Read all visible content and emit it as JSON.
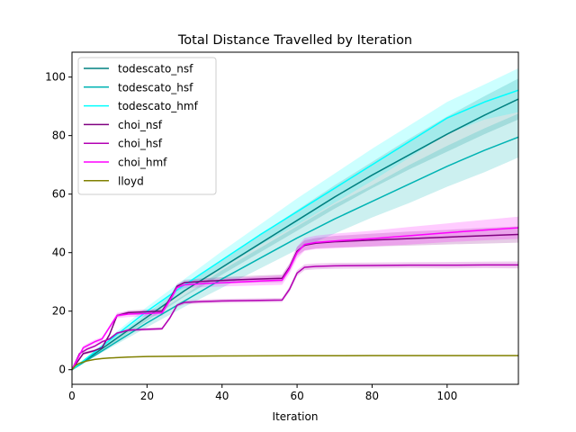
{
  "chart_data": {
    "type": "line",
    "title": "Total Distance Travelled by Iteration",
    "xlabel": "Iteration",
    "ylabel": "",
    "xlim": [
      0,
      119
    ],
    "ylim": [
      -5,
      108.5
    ],
    "xticks": [
      0,
      20,
      40,
      60,
      80,
      100
    ],
    "yticks": [
      0,
      20,
      40,
      60,
      80,
      100
    ],
    "grid": false,
    "legend_position": "top-left",
    "series": [
      {
        "name": "todescato_nsf",
        "color": "#008080",
        "x": [
          0,
          10,
          20,
          30,
          40,
          50,
          60,
          70,
          80,
          90,
          100,
          110,
          119
        ],
        "y": [
          0,
          9,
          18,
          27,
          35,
          43,
          51,
          59,
          66.5,
          73.5,
          80.5,
          87,
          92.5
        ],
        "band": {
          "upper": [
            0,
            9.7,
            19.3,
            29,
            37.5,
            46,
            54.5,
            63,
            71,
            79,
            86.5,
            93.5,
            99.5
          ],
          "lower": [
            0,
            8.3,
            16.7,
            25,
            32.5,
            40,
            47.5,
            55,
            62,
            68.5,
            74.5,
            80.5,
            85.5
          ]
        }
      },
      {
        "name": "todescato_hsf",
        "color": "#00b3b3",
        "x": [
          0,
          10,
          20,
          30,
          40,
          50,
          60,
          70,
          80,
          90,
          100,
          110,
          119
        ],
        "y": [
          0,
          8,
          16,
          23.5,
          31,
          38,
          45,
          51.5,
          57.5,
          63.5,
          69.5,
          75,
          79.5
        ],
        "band": {
          "upper": [
            0,
            8.7,
            17.5,
            25.5,
            34,
            41.5,
            49,
            56.5,
            63,
            70,
            76.5,
            82.5,
            87.5
          ],
          "lower": [
            0,
            7.3,
            14.5,
            21.5,
            28,
            34.5,
            41,
            46.5,
            52,
            57,
            62.5,
            67.5,
            72.5
          ]
        }
      },
      {
        "name": "todescato_hmf",
        "color": "#00ffff",
        "x": [
          0,
          10,
          20,
          30,
          40,
          50,
          60,
          70,
          80,
          90,
          100,
          110,
          119
        ],
        "y": [
          0,
          10,
          20,
          29,
          37.5,
          46,
          54,
          62,
          70,
          78,
          86,
          91.5,
          95.5
        ],
        "band": {
          "upper": [
            0,
            11,
            21.5,
            31,
            40.5,
            49.5,
            58.5,
            67,
            75.5,
            83.5,
            91.5,
            97.5,
            103
          ],
          "lower": [
            0,
            9,
            18.5,
            27,
            34.5,
            42.5,
            49.5,
            57,
            64.5,
            72.5,
            80.5,
            85.5,
            88
          ]
        }
      },
      {
        "name": "choi_nsf",
        "color": "#800080",
        "x": [
          0,
          3,
          6,
          8,
          10,
          12,
          15,
          20,
          24,
          26,
          28,
          30,
          35,
          40,
          50,
          56,
          58,
          60,
          62,
          65,
          70,
          80,
          90,
          100,
          110,
          119
        ],
        "y": [
          0,
          5.5,
          6.5,
          7.5,
          12,
          18.5,
          19.5,
          19.8,
          20,
          24,
          28.5,
          29.8,
          30.2,
          30.5,
          31,
          31.2,
          35,
          40.5,
          42.5,
          43.2,
          43.7,
          44.3,
          44.8,
          45.3,
          45.8,
          46.2
        ],
        "band": {
          "upper": [
            0,
            6,
            7,
            8,
            12.5,
            19,
            20.2,
            20.6,
            20.8,
            24.8,
            29.3,
            30.7,
            31.2,
            31.6,
            32.2,
            32.5,
            36.3,
            42,
            44.2,
            45,
            45.7,
            46.5,
            47.2,
            47.8,
            48.5,
            49
          ],
          "lower": [
            0,
            5,
            6,
            7,
            11.5,
            18,
            18.8,
            19,
            19.2,
            23.2,
            27.7,
            28.9,
            29.2,
            29.4,
            29.8,
            29.9,
            33.7,
            39,
            40.8,
            41.4,
            41.7,
            42.1,
            42.4,
            42.8,
            43.1,
            43.4
          ]
        }
      },
      {
        "name": "choi_hsf",
        "color": "#b300b3",
        "x": [
          0,
          2,
          4,
          6,
          8,
          10,
          12,
          15,
          20,
          24,
          26,
          28,
          30,
          35,
          40,
          50,
          56,
          58,
          60,
          62,
          65,
          70,
          80,
          90,
          100,
          110,
          119
        ],
        "y": [
          0,
          5.5,
          7,
          8,
          9.5,
          10.5,
          12.5,
          13.5,
          13.8,
          14,
          17.5,
          22,
          23,
          23.3,
          23.5,
          23.7,
          23.8,
          27.5,
          33,
          35,
          35.3,
          35.5,
          35.6,
          35.7,
          35.7,
          35.8,
          35.8
        ],
        "band": {
          "upper": [
            0,
            5.9,
            7.4,
            8.4,
            9.9,
            10.9,
            12.9,
            14,
            14.3,
            14.5,
            18,
            22.6,
            23.7,
            24,
            24.2,
            24.4,
            24.5,
            28.4,
            34,
            36,
            36.3,
            36.5,
            36.6,
            36.7,
            36.8,
            36.9,
            37
          ],
          "lower": [
            0,
            5.1,
            6.6,
            7.6,
            9.1,
            10.1,
            12.1,
            13,
            13.3,
            13.5,
            17,
            21.4,
            22.3,
            22.6,
            22.8,
            23,
            23.1,
            26.6,
            32,
            34,
            34.3,
            34.5,
            34.6,
            34.7,
            34.6,
            34.7,
            34.6
          ]
        }
      },
      {
        "name": "choi_hmf",
        "color": "#ff00ff",
        "x": [
          0,
          3,
          6,
          8,
          10,
          12,
          15,
          20,
          24,
          26,
          28,
          30,
          35,
          40,
          50,
          56,
          58,
          60,
          62,
          65,
          70,
          80,
          90,
          100,
          110,
          119
        ],
        "y": [
          0,
          7.5,
          9.5,
          10.5,
          14.5,
          18.5,
          19,
          19.2,
          19.4,
          23.5,
          28,
          29,
          29.4,
          29.7,
          30.3,
          30.6,
          34.5,
          40,
          42.8,
          43.5,
          44,
          44.8,
          45.8,
          46.8,
          47.7,
          48.5
        ],
        "band": {
          "upper": [
            0,
            8.2,
            10.2,
            11.2,
            15.2,
            19.4,
            20,
            20.2,
            20.4,
            24.5,
            29,
            30.1,
            30.6,
            31,
            31.8,
            32.2,
            36.2,
            42,
            45,
            45.8,
            46.5,
            47.5,
            48.8,
            50,
            51.2,
            52.3
          ],
          "lower": [
            0,
            6.8,
            8.8,
            9.8,
            13.8,
            17.6,
            18,
            18.2,
            18.4,
            22.5,
            27,
            27.9,
            28.2,
            28.4,
            28.8,
            29,
            32.8,
            38,
            40.6,
            41.2,
            41.5,
            42.1,
            42.8,
            43.6,
            44.2,
            44.7
          ]
        }
      },
      {
        "name": "lloyd",
        "color": "#808000",
        "x": [
          0,
          1,
          2,
          4,
          6,
          8,
          10,
          15,
          20,
          30,
          40,
          60,
          80,
          100,
          119
        ],
        "y": [
          0,
          1.5,
          2.2,
          3,
          3.5,
          3.8,
          4.0,
          4.3,
          4.5,
          4.6,
          4.7,
          4.75,
          4.8,
          4.8,
          4.8
        ],
        "band": {
          "upper": [
            0,
            1.6,
            2.35,
            3.15,
            3.65,
            3.95,
            4.15,
            4.45,
            4.65,
            4.75,
            4.85,
            4.9,
            4.95,
            4.95,
            4.95
          ],
          "lower": [
            0,
            1.4,
            2.05,
            2.85,
            3.35,
            3.65,
            3.85,
            4.15,
            4.35,
            4.45,
            4.55,
            4.6,
            4.65,
            4.65,
            4.65
          ]
        }
      }
    ]
  }
}
